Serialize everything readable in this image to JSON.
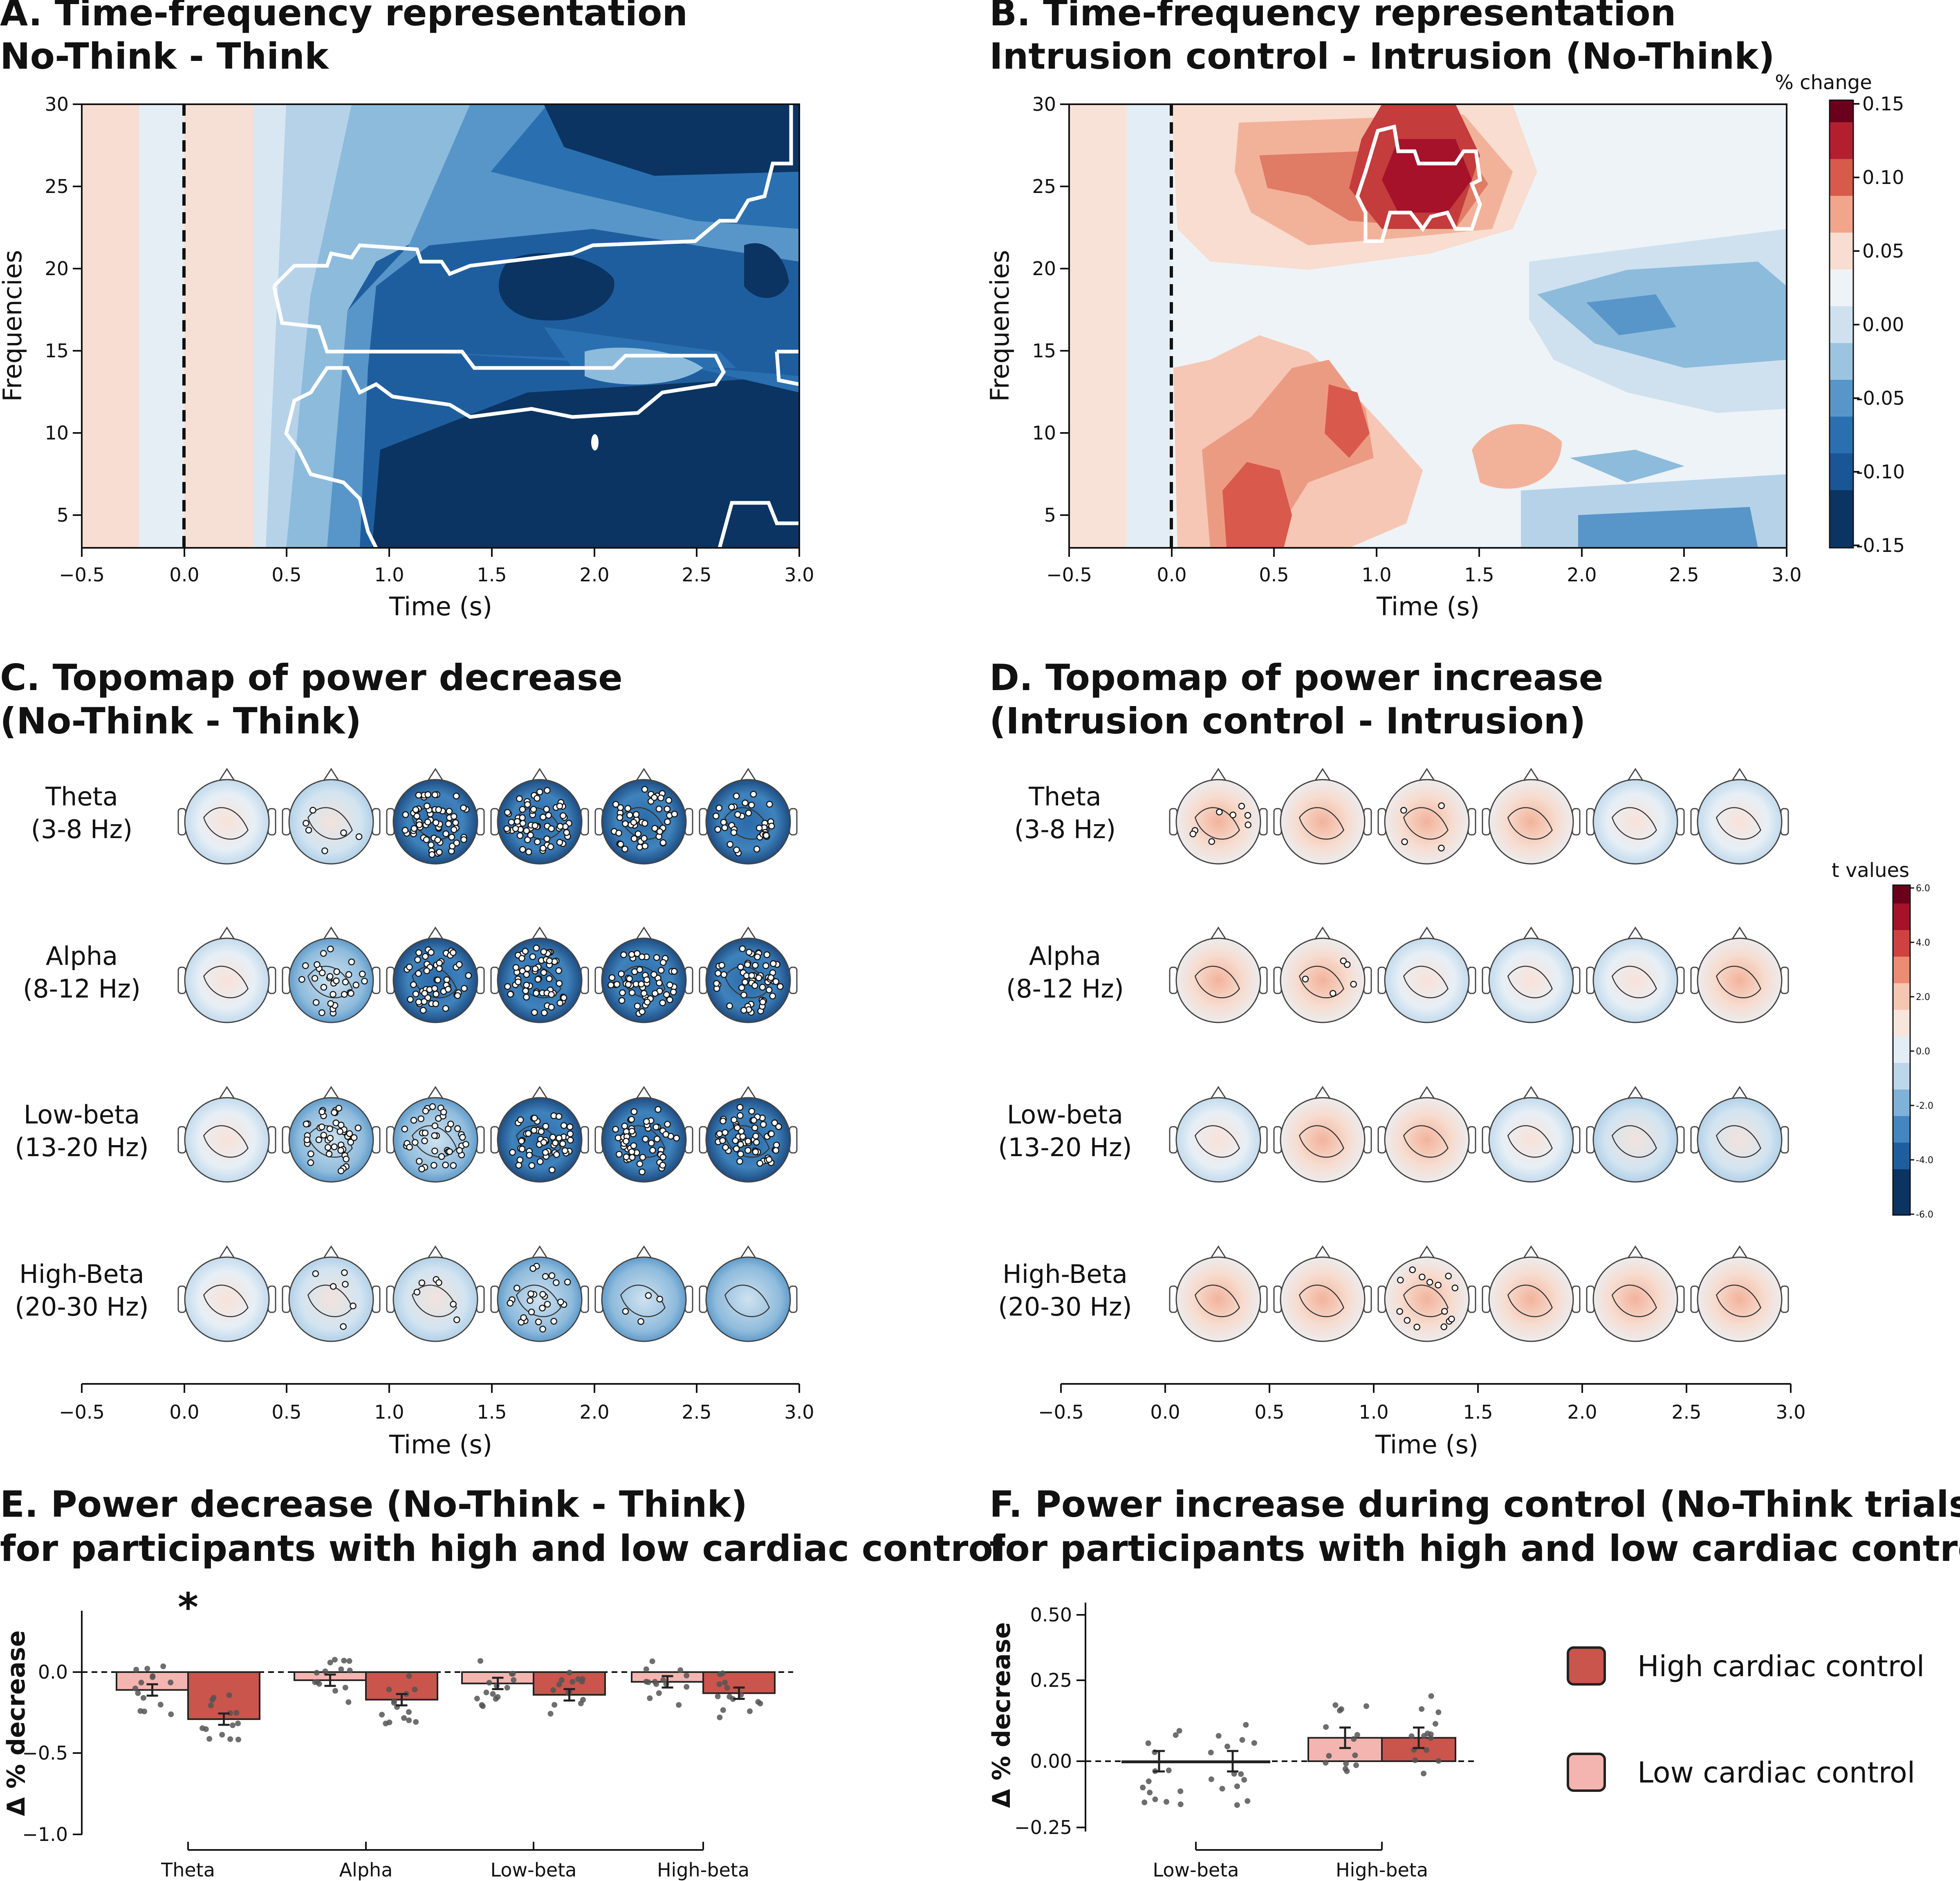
{
  "panels": {
    "A": {
      "title_line1": "A. Time-frequency representation",
      "title_line2": "No-Think - Think",
      "xlabel": "Time (s)",
      "ylabel": "Frequencies"
    },
    "B": {
      "title_line1": "B. Time-frequency representation",
      "title_line2": "Intrusion control - Intrusion (No-Think)",
      "xlabel": "Time (s)",
      "ylabel": "Frequencies"
    },
    "C": {
      "title_line1": "C. Topomap of power decrease",
      "title_line2": "(No-Think - Think)",
      "xlabel": "Time (s)"
    },
    "D": {
      "title_line1": "D. Topomap of power increase",
      "title_line2": "(Intrusion control - Intrusion)",
      "xlabel": "Time (s)"
    },
    "E": {
      "title_line1": "E. Power decrease (No-Think - Think)",
      "title_line2": "for participants with high and low cardiac control",
      "ylabel": "Δ % decrease",
      "significance_mark": "*"
    },
    "F": {
      "title_line1": "F. Power increase during control (No-Think trials)",
      "title_line2": "for participants with high and low cardiac control",
      "ylabel": "Δ % decrease"
    }
  },
  "bands": [
    {
      "name": "Theta",
      "range": "(3-8 Hz)"
    },
    {
      "name": "Alpha",
      "range": "(8-12 Hz)"
    },
    {
      "name": "Low-beta",
      "range": "(13-20 Hz)"
    },
    {
      "name": "High-Beta",
      "range": "(20-30 Hz)"
    }
  ],
  "colorbars": {
    "pct": {
      "title": "% change",
      "ticks": [
        "0.15",
        "0.10",
        "0.05",
        "0.00",
        "-0.05",
        "-0.10",
        "-0.15"
      ]
    },
    "t": {
      "title": "t values",
      "ticks": [
        "6.0",
        "4.0",
        "2.0",
        "0.0",
        "-2.0",
        "-4.0",
        "-6.0"
      ]
    }
  },
  "colors": {
    "high_cardiac": "#c9554d",
    "low_cardiac": "#f4b5b0",
    "dark_blue": "#0b3462",
    "dark_red": "#8b0c22"
  },
  "legend": {
    "high": "High cardiac control",
    "low": "Low cardiac control"
  },
  "chart_data": [
    {
      "type": "heatmap",
      "panel": "A",
      "x_ticks": [
        "−0.5",
        "0.0",
        "0.5",
        "1.0",
        "1.5",
        "2.0",
        "2.5",
        "3.0"
      ],
      "y_ticks": [
        "5",
        "10",
        "15",
        "20",
        "25",
        "30"
      ],
      "xlim": [
        -0.5,
        3.0
      ],
      "ylim": [
        3,
        30
      ],
      "stimulus_onset": 0.0,
      "colorbar": "% change",
      "clim": [
        -0.15,
        0.15
      ]
    },
    {
      "type": "heatmap",
      "panel": "B",
      "x_ticks": [
        "−0.5",
        "0.0",
        "0.5",
        "1.0",
        "1.5",
        "2.0",
        "2.5",
        "3.0"
      ],
      "y_ticks": [
        "5",
        "10",
        "15",
        "20",
        "25",
        "30"
      ],
      "xlim": [
        -0.5,
        3.0
      ],
      "ylim": [
        3,
        30
      ],
      "stimulus_onset": 0.0,
      "colorbar": "% change",
      "clim": [
        -0.15,
        0.15
      ]
    },
    {
      "type": "bar",
      "panel": "E",
      "categories": [
        "Theta",
        "Alpha",
        "Low-beta",
        "High-beta"
      ],
      "y_ticks": [
        "0.0",
        "−0.5",
        "−1.0"
      ],
      "ylim": [
        -1.05,
        0.25
      ],
      "series": [
        {
          "name": "Low cardiac control",
          "values": [
            -0.11,
            -0.05,
            -0.07,
            -0.06
          ]
        },
        {
          "name": "High cardiac control",
          "values": [
            -0.29,
            -0.17,
            -0.14,
            -0.13
          ]
        }
      ]
    },
    {
      "type": "bar",
      "panel": "F",
      "categories": [
        "Low-beta",
        "High-beta"
      ],
      "y_ticks": [
        "0.50",
        "0.25",
        "0.00",
        "−0.25"
      ],
      "ylim": [
        -0.27,
        0.56
      ],
      "series": [
        {
          "name": "Low cardiac control",
          "values": [
            0.0,
            0.08
          ]
        },
        {
          "name": "High cardiac control",
          "values": [
            0.0,
            0.08
          ]
        }
      ]
    }
  ]
}
